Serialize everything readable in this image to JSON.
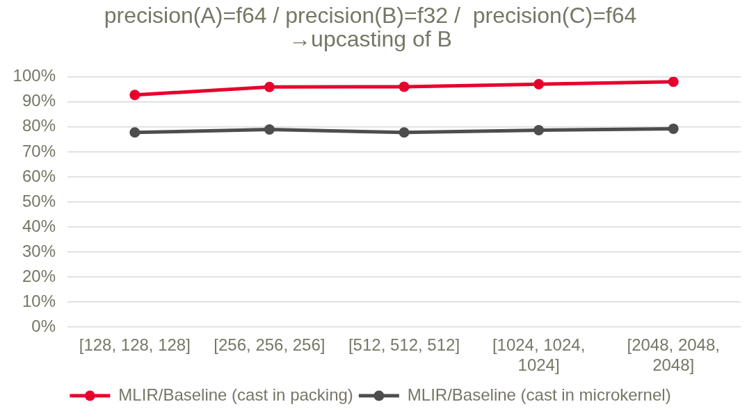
{
  "chart_data": {
    "type": "line",
    "title": "precision(A)=f64 / precision(B)=f32 /  precision(C)=f64 →upcasting of B",
    "categories": [
      "[128, 128, 128]",
      "[256, 256, 256]",
      "[512, 512, 512]",
      "[1024, 1024, 1024]",
      "[2048, 2048, 2048]"
    ],
    "series": [
      {
        "name": "MLIR/Baseline (cast in packing)",
        "color": "#e8002d",
        "values": [
          92.8,
          96.0,
          96.1,
          97.1,
          98.1
        ]
      },
      {
        "name": "MLIR/Baseline (cast in microkernel)",
        "color": "#4d4d4d",
        "values": [
          77.8,
          79.0,
          77.8,
          78.7,
          79.3
        ]
      }
    ],
    "ylim": [
      0,
      100
    ],
    "yticks": [
      {
        "value": 0,
        "label": "0%"
      },
      {
        "value": 10,
        "label": "10%"
      },
      {
        "value": 20,
        "label": "20%"
      },
      {
        "value": 30,
        "label": "30%"
      },
      {
        "value": 40,
        "label": "40%"
      },
      {
        "value": 50,
        "label": "50%"
      },
      {
        "value": 60,
        "label": "60%"
      },
      {
        "value": 70,
        "label": "70%"
      },
      {
        "value": 80,
        "label": "80%"
      },
      {
        "value": 90,
        "label": "90%"
      },
      {
        "value": 100,
        "label": "100%"
      }
    ],
    "grid": "y",
    "legend": "bottom",
    "marker": "circle",
    "line_style": "solid"
  }
}
